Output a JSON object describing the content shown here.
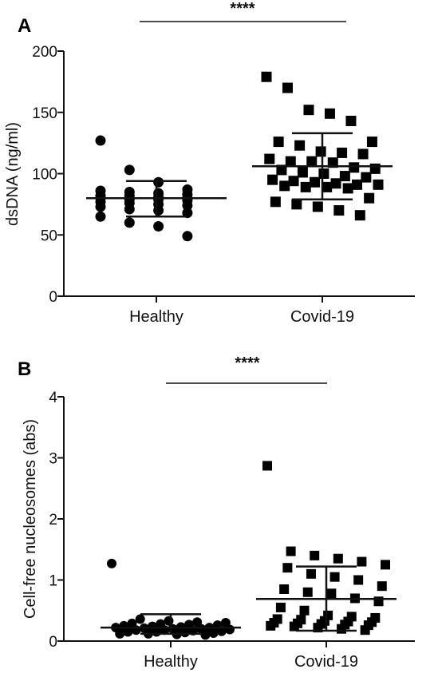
{
  "chart_data": [
    {
      "type": "scatter",
      "panel": "A",
      "ylabel": "dsDNA (ng/ml)",
      "xlabel": "",
      "ylim": [
        0,
        200
      ],
      "yticks": [
        "0",
        "50",
        "100",
        "150",
        "200"
      ],
      "categories": [
        "Healthy",
        "Covid-19"
      ],
      "significance": "****",
      "grid": false,
      "series": [
        {
          "marker": "circle",
          "mean": 80,
          "sd_upper": 94,
          "sd_lower": 65,
          "values": [
            127,
            103,
            93,
            87,
            86,
            85,
            84,
            83,
            82,
            82,
            81,
            80,
            80,
            79,
            79,
            78,
            77,
            76,
            75,
            74,
            73,
            71,
            70,
            68,
            65,
            60,
            57,
            49
          ]
        },
        {
          "marker": "square",
          "mean": 106,
          "sd_upper": 133,
          "sd_lower": 79,
          "values": [
            179,
            170,
            152,
            149,
            143,
            126,
            126,
            123,
            118,
            117,
            116,
            112,
            110,
            110,
            109,
            105,
            104,
            103,
            101,
            100,
            98,
            97,
            95,
            94,
            93,
            92,
            91,
            91,
            90,
            89,
            89,
            88,
            80,
            77,
            75,
            73,
            70,
            66
          ]
        }
      ]
    },
    {
      "type": "scatter",
      "panel": "B",
      "ylabel": "Cell-free nucleosomes (abs)",
      "xlabel": "",
      "ylim": [
        0,
        4
      ],
      "yticks": [
        "0",
        "1",
        "2",
        "3",
        "4"
      ],
      "categories": [
        "Healthy",
        "Covid-19"
      ],
      "significance": "****",
      "grid": false,
      "series": [
        {
          "marker": "circle",
          "mean": 0.22,
          "sd_upper": 0.44,
          "sd_lower": 0.12,
          "values": [
            1.27,
            0.36,
            0.33,
            0.31,
            0.3,
            0.29,
            0.28,
            0.27,
            0.26,
            0.25,
            0.24,
            0.23,
            0.22,
            0.22,
            0.21,
            0.2,
            0.2,
            0.19,
            0.18,
            0.18,
            0.17,
            0.16,
            0.15,
            0.15,
            0.14,
            0.13,
            0.12,
            0.12,
            0.11,
            0.1
          ]
        },
        {
          "marker": "square",
          "mean": 0.69,
          "sd_upper": 1.22,
          "sd_lower": 0.17,
          "values": [
            2.87,
            1.47,
            1.4,
            1.35,
            1.3,
            1.25,
            1.2,
            1.1,
            1.05,
            1.0,
            0.9,
            0.85,
            0.8,
            0.78,
            0.7,
            0.65,
            0.55,
            0.5,
            0.42,
            0.4,
            0.38,
            0.36,
            0.35,
            0.33,
            0.32,
            0.31,
            0.3,
            0.29,
            0.28,
            0.27,
            0.26,
            0.25,
            0.24,
            0.22,
            0.2,
            0.18
          ]
        }
      ]
    }
  ]
}
